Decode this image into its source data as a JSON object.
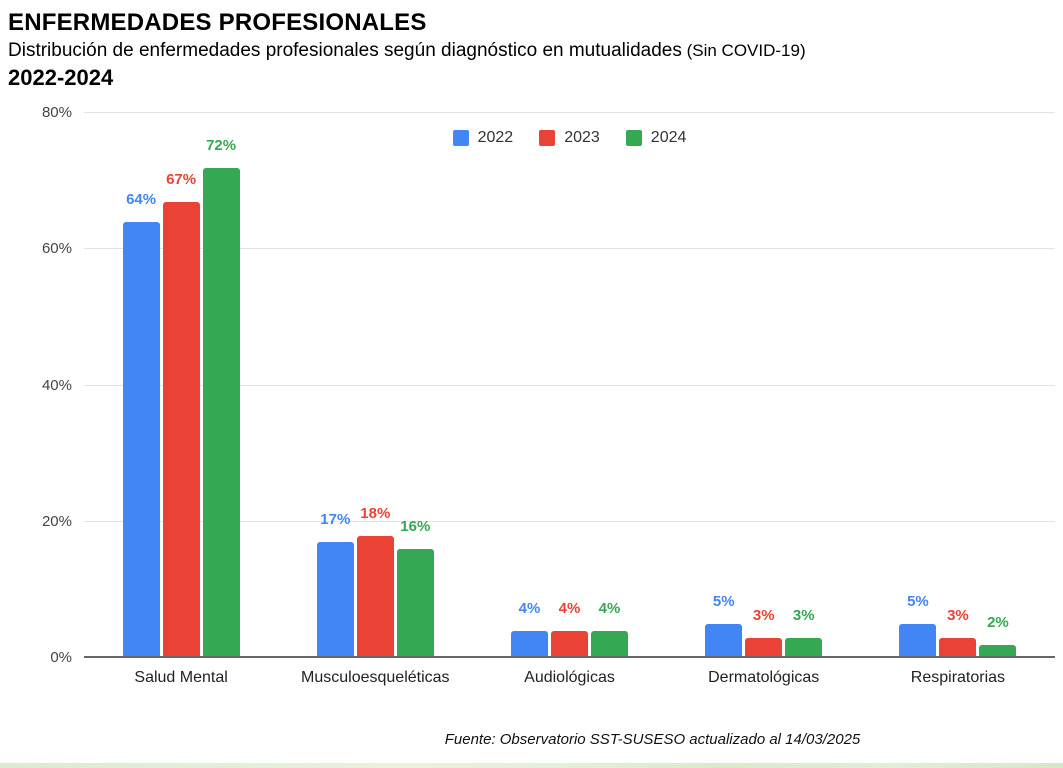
{
  "header": {
    "title": "ENFERMEDADES PROFESIONALES",
    "subtitle_main": "Distribución de enfermedades profesionales según diagnóstico en mutualidades",
    "subtitle_paren": " (Sin COVID-19)",
    "period": "2022-2024"
  },
  "chart_data": {
    "type": "bar",
    "title": "Distribución de enfermedades profesionales según diagnóstico en mutualidades (Sin COVID-19) 2022-2024",
    "categories": [
      "Salud Mental",
      "Musculoesqueléticas",
      "Audiológicas",
      "Dermatológicas",
      "Respiratorias"
    ],
    "series": [
      {
        "name": "2022",
        "color": "#4285F4",
        "values": [
          64,
          17,
          4,
          5,
          5
        ]
      },
      {
        "name": "2023",
        "color": "#EA4335",
        "values": [
          67,
          18,
          4,
          3,
          3
        ]
      },
      {
        "name": "2024",
        "color": "#34A853",
        "values": [
          72,
          16,
          4,
          3,
          2
        ]
      }
    ],
    "value_suffix": "%",
    "xlabel": "",
    "ylabel": "",
    "ylim": [
      0,
      80
    ],
    "yticks": [
      {
        "value": 0,
        "label": "0%"
      },
      {
        "value": 20,
        "label": "20%"
      },
      {
        "value": 40,
        "label": "40%"
      },
      {
        "value": 60,
        "label": "60%"
      },
      {
        "value": 80,
        "label": "80%"
      }
    ],
    "grid": true,
    "legend_position": "top-center",
    "data_labels": true
  },
  "footer": {
    "source": "Fuente: Observatorio SST-SUSESO actualizado al 14/03/2025"
  }
}
